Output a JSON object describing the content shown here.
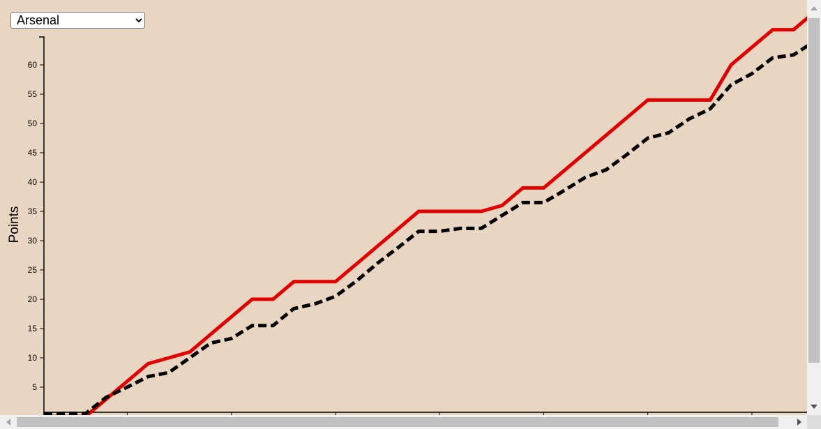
{
  "selector": {
    "options": [
      "Arsenal"
    ],
    "selected": "Arsenal"
  },
  "chart_data": {
    "type": "line",
    "title": "",
    "xlabel": "",
    "ylabel": "Points",
    "ylim": [
      0,
      65
    ],
    "xlim": [
      0,
      37
    ],
    "grid": false,
    "yticks": [
      5,
      10,
      15,
      20,
      25,
      30,
      35,
      40,
      45,
      50,
      55,
      60
    ],
    "xticks": [
      4,
      9,
      14,
      19,
      24,
      29,
      34
    ],
    "colors": {
      "actual": "#e00000",
      "expected": "#000000"
    },
    "series": [
      {
        "style": "solid",
        "color": "#e00000",
        "x": [
          0,
          1,
          2,
          3,
          4,
          5,
          6,
          7,
          8,
          9,
          10,
          11,
          12,
          13,
          14,
          15,
          16,
          17,
          18,
          19,
          20,
          21,
          22,
          23,
          24,
          25,
          26,
          27,
          28,
          29,
          30,
          31,
          32,
          33,
          34,
          35,
          36,
          37
        ],
        "y": [
          0,
          0,
          0,
          3,
          6,
          9,
          10,
          11,
          14,
          17,
          20,
          20,
          23,
          23,
          23,
          26,
          29,
          32,
          35,
          35,
          35,
          35,
          36,
          39,
          39,
          42,
          45,
          48,
          51,
          54,
          54,
          54,
          54,
          60,
          63,
          66,
          66,
          69
        ]
      },
      {
        "style": "dashed",
        "color": "#000000",
        "x": [
          0,
          1,
          2,
          3,
          4,
          5,
          6,
          7,
          8,
          9,
          10,
          11,
          12,
          13,
          14,
          15,
          16,
          17,
          18,
          19,
          20,
          21,
          22,
          23,
          24,
          25,
          26,
          27,
          28,
          29,
          30,
          31,
          32,
          33,
          34,
          35,
          36,
          37
        ],
        "y": [
          0.4,
          0.5,
          0.5,
          3.3,
          5,
          6.8,
          7.5,
          10,
          12.5,
          13.3,
          15.5,
          15.5,
          18.4,
          19.2,
          20.5,
          23.1,
          26.1,
          28.8,
          31.6,
          31.6,
          32.1,
          32.1,
          34.3,
          36.5,
          36.5,
          38.6,
          40.8,
          42.1,
          44.7,
          47.5,
          48.4,
          50.8,
          52.5,
          56.6,
          58.5,
          61.2,
          61.7,
          64
        ]
      }
    ]
  }
}
